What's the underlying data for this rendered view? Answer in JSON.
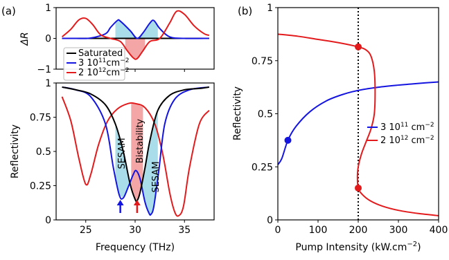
{
  "panels": {
    "a": {
      "label": "(a)"
    },
    "b": {
      "label": "(b)"
    }
  },
  "chart_data": [
    {
      "id": "a_top",
      "type": "line",
      "ylabel": "ΔR",
      "xlim": [
        22,
        38
      ],
      "ylim": [
        -1,
        1
      ],
      "yticks": [
        "1",
        "0",
        "−1"
      ],
      "yticks_values": [
        1,
        0,
        -1
      ],
      "legend": {
        "placement": "bottom-left",
        "entries": [
          {
            "text": "Saturated",
            "color": "#000000"
          },
          {
            "text": "3 10",
            "sup": "11",
            "after": "cm",
            "sup2": "−2",
            "color": "#1414e0"
          },
          {
            "text": "2 10",
            "sup": "12",
            "after": "cm",
            "sup2": "−2",
            "color": "#e31a1c"
          }
        ]
      },
      "series": [
        {
          "color": "#1414e0",
          "x": [
            22.6,
            24,
            25.5,
            27,
            27.5,
            28.2,
            28.5,
            29.5,
            30.2,
            30.8,
            31.5,
            31.9,
            32.5,
            33.5,
            35,
            37.5
          ],
          "y": [
            0,
            0,
            0.01,
            0.15,
            0.35,
            0.58,
            0.56,
            0.25,
            0.0,
            0.18,
            0.5,
            0.58,
            0.32,
            0.05,
            0,
            0
          ]
        },
        {
          "color": "#e31a1c",
          "x": [
            22.6,
            23.5,
            24.3,
            25,
            25.7,
            26.5,
            27.5,
            28.5,
            29.2,
            29.8,
            30.2,
            30.8,
            31.5,
            32.5,
            33.5,
            34.2,
            35,
            36,
            37,
            37.5
          ],
          "y": [
            0.05,
            0.3,
            0.6,
            0.65,
            0.45,
            0.12,
            0.0,
            -0.1,
            -0.4,
            -0.63,
            -0.66,
            -0.4,
            -0.1,
            0.0,
            0.5,
            0.88,
            0.78,
            0.4,
            0.15,
            0.1
          ]
        }
      ],
      "shaded_regions": [
        {
          "x0": 28.0,
          "x1": 32.3,
          "color": "#a8dde9"
        },
        {
          "x0": 29.0,
          "x1": 31.0,
          "color": "#f4a6a6"
        }
      ]
    },
    {
      "id": "a_bottom",
      "type": "line",
      "xlabel": "Frequency (THz)",
      "ylabel": "Reflectivity",
      "xlim": [
        22,
        38
      ],
      "ylim": [
        0,
        1
      ],
      "xticks": [
        "25",
        "30",
        "35"
      ],
      "xticks_values": [
        25,
        30,
        35
      ],
      "yticks": [
        "0",
        "0.25",
        "0.5",
        "0.75",
        "1"
      ],
      "yticks_values": [
        0,
        0.25,
        0.5,
        0.75,
        1
      ],
      "annotations": [
        "SESAM",
        "Bistability",
        "SESAM"
      ],
      "arrows": [
        {
          "x": 28.5,
          "color": "#1414e0"
        },
        {
          "x": 30.2,
          "color": "#e31a1c"
        }
      ],
      "series": [
        {
          "name": "Saturated",
          "color": "#000000",
          "x": [
            22.6,
            24,
            25.5,
            27,
            28,
            28.8,
            29.5,
            30.0,
            30.2,
            30.5,
            31,
            31.5,
            32.3,
            33.5,
            35,
            36.5,
            37.5
          ],
          "y": [
            0.97,
            0.95,
            0.92,
            0.84,
            0.7,
            0.5,
            0.26,
            0.15,
            0.14,
            0.2,
            0.38,
            0.58,
            0.8,
            0.91,
            0.95,
            0.96,
            0.97
          ],
          "draw_order": 3
        },
        {
          "name": "3 10^11 cm^-2",
          "color": "#1414e0",
          "x": [
            22.6,
            24,
            25.5,
            27,
            27.8,
            28.4,
            28.8,
            29.3,
            29.8,
            30.1,
            30.5,
            31.0,
            31.4,
            31.6,
            31.9,
            32.4,
            33,
            34,
            35.5,
            37.5
          ],
          "y": [
            0.97,
            0.95,
            0.9,
            0.7,
            0.38,
            0.18,
            0.16,
            0.24,
            0.33,
            0.36,
            0.3,
            0.13,
            0.05,
            0.04,
            0.1,
            0.36,
            0.7,
            0.88,
            0.95,
            0.97
          ],
          "draw_order": 2
        },
        {
          "name": "2 10^12 cm^-2",
          "color": "#e31a1c",
          "x": [
            22.6,
            23.5,
            24.3,
            25.0,
            25.5,
            26.3,
            27.2,
            28.2,
            29.3,
            30.0,
            31.0,
            32.0,
            32.8,
            33.5,
            34.0,
            34.4,
            34.9,
            35.5,
            36.5,
            37.5
          ],
          "y": [
            0.9,
            0.72,
            0.45,
            0.26,
            0.33,
            0.55,
            0.72,
            0.81,
            0.85,
            0.85,
            0.82,
            0.7,
            0.48,
            0.2,
            0.06,
            0.03,
            0.1,
            0.38,
            0.7,
            0.8
          ],
          "draw_order": 1
        }
      ],
      "shaded_regions": [
        {
          "x0": 28.0,
          "x1": 32.3,
          "color": "#a8dde9"
        },
        {
          "x0": 29.6,
          "x1": 30.8,
          "color": "#f4a6a6"
        }
      ]
    },
    {
      "id": "b",
      "type": "line",
      "xlabel": "Pump Intensity (kW.cm",
      "xlabel_sup": "−2",
      "xlabel_end": ")",
      "ylabel": "Reflectivity",
      "xlim": [
        0,
        400
      ],
      "ylim": [
        0,
        1
      ],
      "xticks": [
        "0",
        "100",
        "200",
        "300",
        "400"
      ],
      "xticks_values": [
        0,
        100,
        200,
        300,
        400
      ],
      "yticks": [
        "0",
        "0.25",
        "0.5",
        "0.75",
        "1"
      ],
      "yticks_values": [
        0,
        0.25,
        0.5,
        0.75,
        1
      ],
      "vline": {
        "x": 200,
        "style": "dotted"
      },
      "legend": {
        "placement": "center-right",
        "entries": [
          {
            "text": "3 10",
            "sup": "11",
            "after": " cm",
            "sup2": "−2",
            "color": "#1414e0"
          },
          {
            "text": "2 10",
            "sup": "12",
            "after": " cm",
            "sup2": "−2",
            "color": "#e31a1c"
          }
        ]
      },
      "series": [
        {
          "name": "3 10^11 cm^-2",
          "color": "#1414e0",
          "x": [
            0,
            10,
            25,
            45,
            80,
            120,
            160,
            200,
            250,
            300,
            350,
            400
          ],
          "y": [
            0.26,
            0.29,
            0.375,
            0.44,
            0.51,
            0.56,
            0.59,
            0.61,
            0.625,
            0.635,
            0.643,
            0.65
          ],
          "points": [
            {
              "x": 25,
              "y": 0.375
            }
          ]
        },
        {
          "name": "2 10^12 cm^-2",
          "color": "#e31a1c",
          "x": [
            0,
            50,
            100,
            150,
            200,
            220,
            232,
            240,
            242,
            240,
            232,
            220,
            208,
            200,
            198,
            200,
            210,
            230,
            260,
            300,
            350,
            400
          ],
          "y": [
            0.875,
            0.865,
            0.85,
            0.835,
            0.815,
            0.8,
            0.77,
            0.7,
            0.6,
            0.5,
            0.43,
            0.37,
            0.31,
            0.25,
            0.2,
            0.15,
            0.12,
            0.09,
            0.065,
            0.045,
            0.03,
            0.02
          ],
          "points": [
            {
              "x": 200,
              "y": 0.815
            },
            {
              "x": 200,
              "y": 0.15
            }
          ]
        }
      ]
    }
  ]
}
